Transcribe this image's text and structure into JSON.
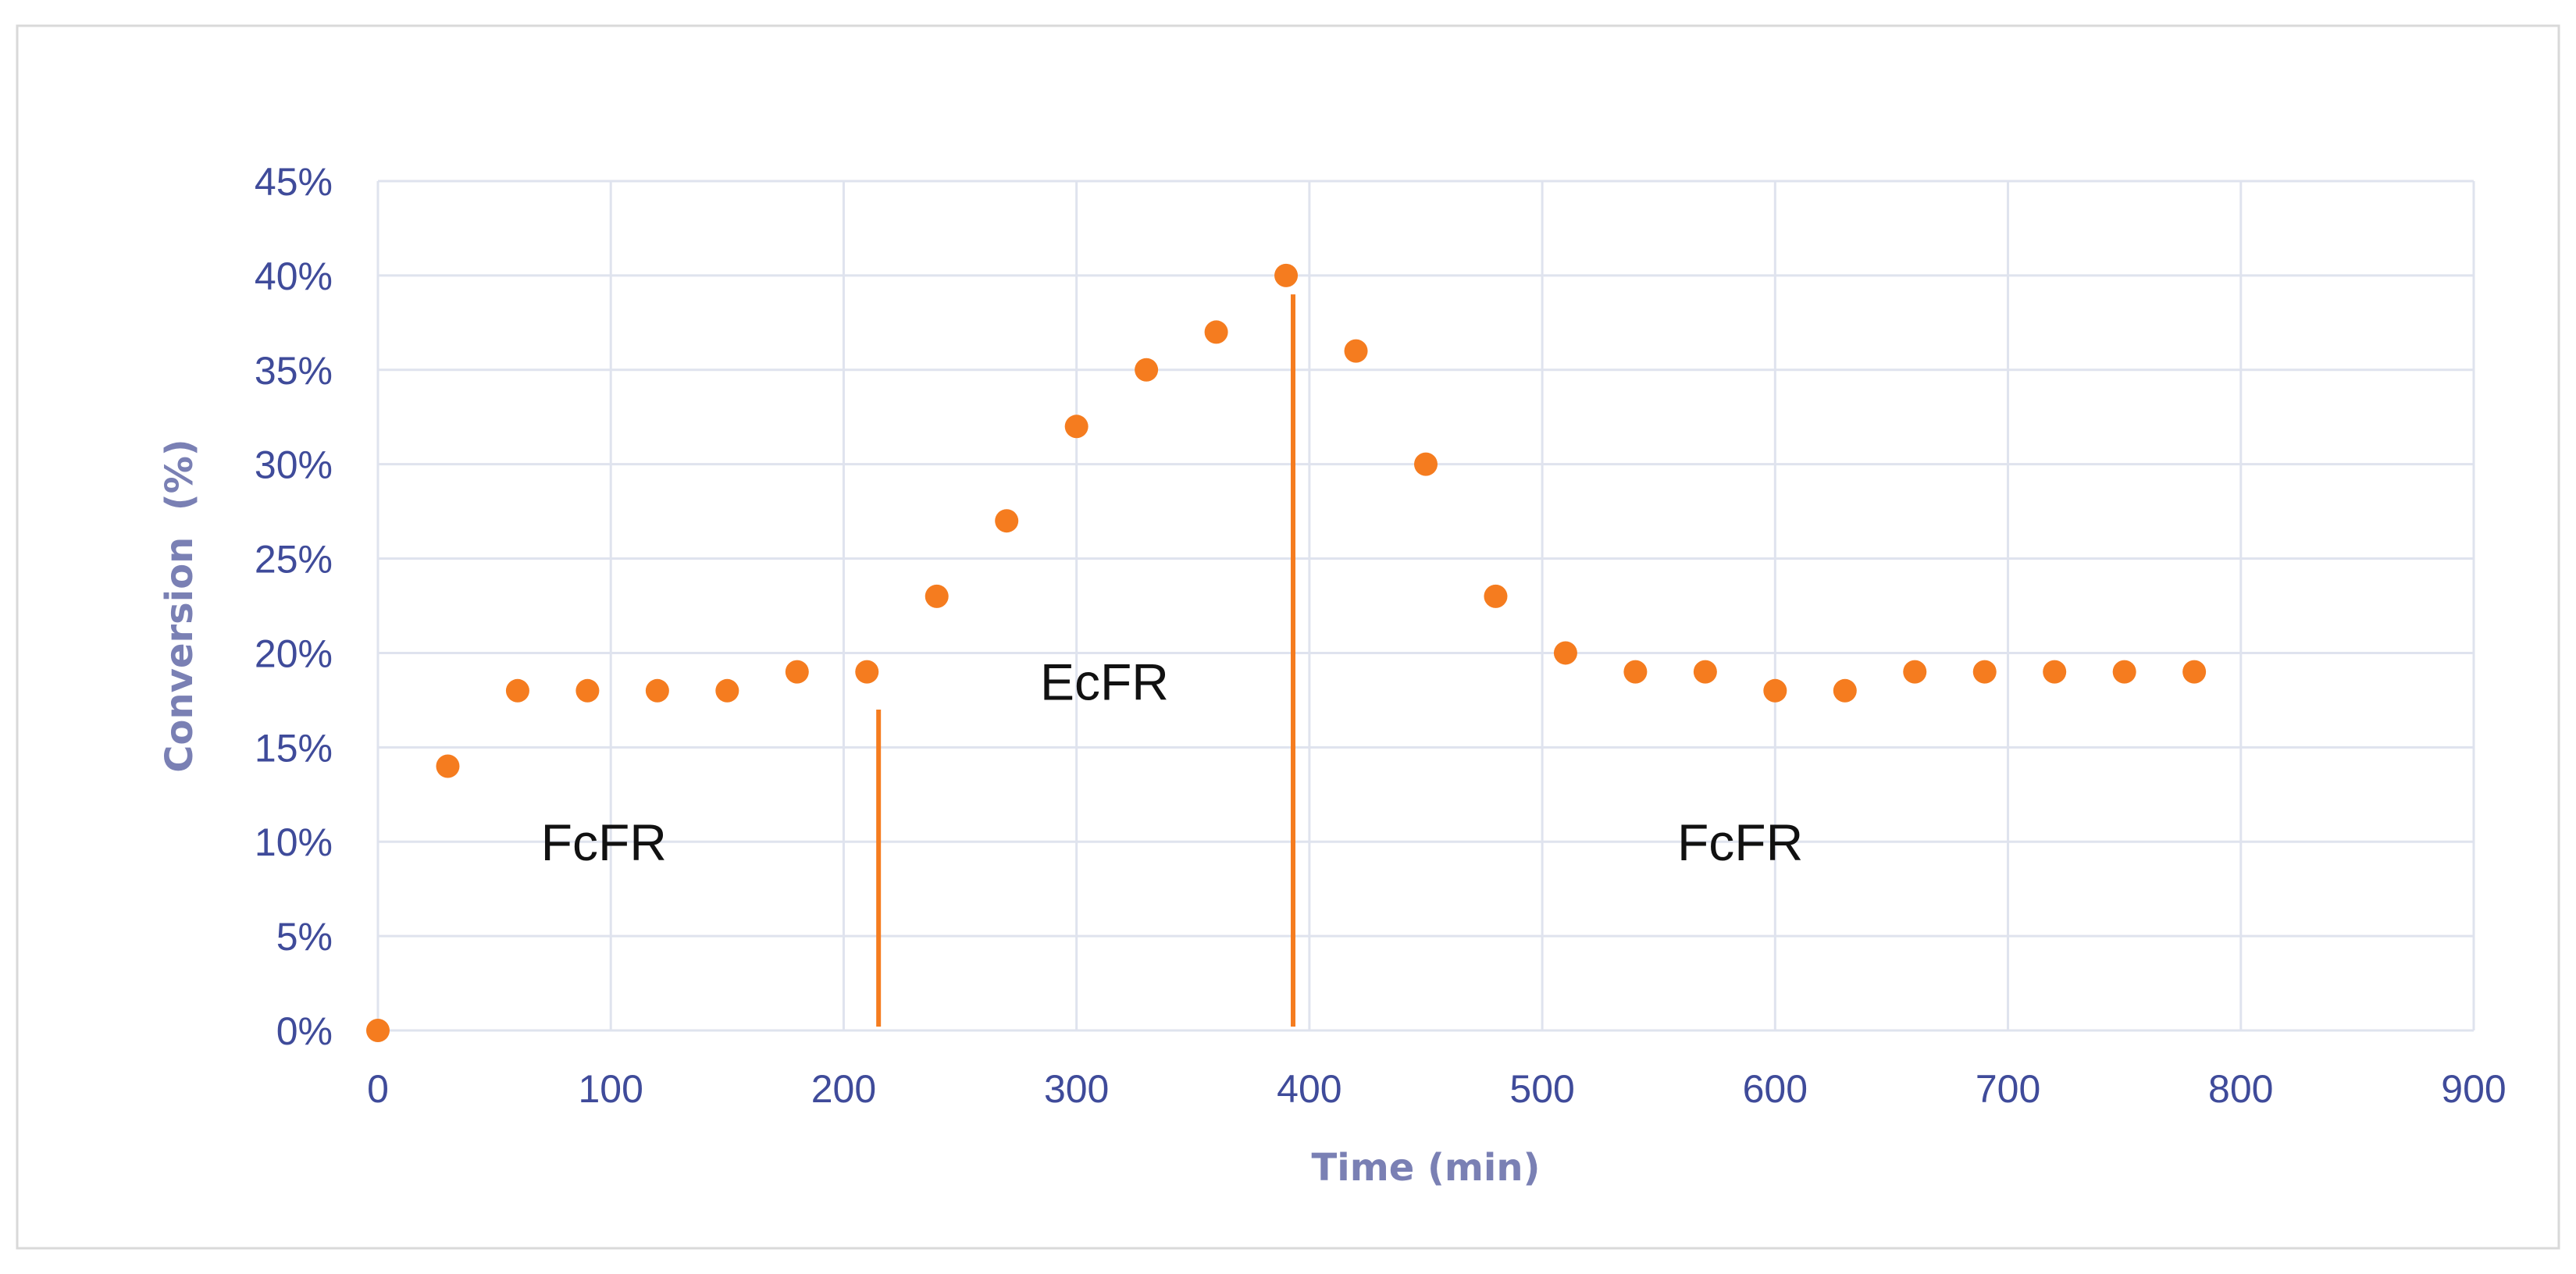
{
  "chart_data": {
    "type": "scatter",
    "title": "",
    "xlabel": "Time (min)",
    "ylabel": "Conversion  (%)",
    "xlim": [
      0,
      900
    ],
    "ylim": [
      0,
      45
    ],
    "x_ticks": [
      0,
      100,
      200,
      300,
      400,
      500,
      600,
      700,
      800,
      900
    ],
    "y_ticks": [
      0,
      5,
      10,
      15,
      20,
      25,
      30,
      35,
      40,
      45
    ],
    "x_tick_labels": [
      "0",
      "100",
      "200",
      "300",
      "400",
      "500",
      "600",
      "700",
      "800",
      "900"
    ],
    "y_tick_labels": [
      "0%",
      "5%",
      "10%",
      "15%",
      "20%",
      "25%",
      "30%",
      "35%",
      "40%",
      "45%"
    ],
    "grid": true,
    "legend": "none",
    "series": [
      {
        "color": "#f57c1f",
        "points": [
          {
            "x": 0,
            "y": 0
          },
          {
            "x": 30,
            "y": 14
          },
          {
            "x": 60,
            "y": 18
          },
          {
            "x": 90,
            "y": 18
          },
          {
            "x": 120,
            "y": 18
          },
          {
            "x": 150,
            "y": 18
          },
          {
            "x": 180,
            "y": 19
          },
          {
            "x": 210,
            "y": 19
          },
          {
            "x": 240,
            "y": 23
          },
          {
            "x": 270,
            "y": 27
          },
          {
            "x": 300,
            "y": 32
          },
          {
            "x": 330,
            "y": 35
          },
          {
            "x": 360,
            "y": 37
          },
          {
            "x": 390,
            "y": 40
          },
          {
            "x": 420,
            "y": 36
          },
          {
            "x": 450,
            "y": 30
          },
          {
            "x": 480,
            "y": 23
          },
          {
            "x": 510,
            "y": 20
          },
          {
            "x": 540,
            "y": 19
          },
          {
            "x": 570,
            "y": 19
          },
          {
            "x": 600,
            "y": 18
          },
          {
            "x": 630,
            "y": 18
          },
          {
            "x": 660,
            "y": 19
          },
          {
            "x": 690,
            "y": 19
          },
          {
            "x": 720,
            "y": 19
          },
          {
            "x": 750,
            "y": 19
          },
          {
            "x": 780,
            "y": 19
          }
        ]
      }
    ],
    "vertical_markers": [
      {
        "x": 215,
        "y_from": 0.2,
        "y_to": 17,
        "color": "#f57c1f"
      },
      {
        "x": 393,
        "y_from": 0.2,
        "y_to": 39,
        "color": "#f57c1f"
      }
    ],
    "annotations": [
      {
        "text": "FcFR",
        "x": 97,
        "y": 10
      },
      {
        "text": "EcFR",
        "x": 312,
        "y": 18.5
      },
      {
        "text": "FcFR",
        "x": 585,
        "y": 10
      }
    ]
  }
}
